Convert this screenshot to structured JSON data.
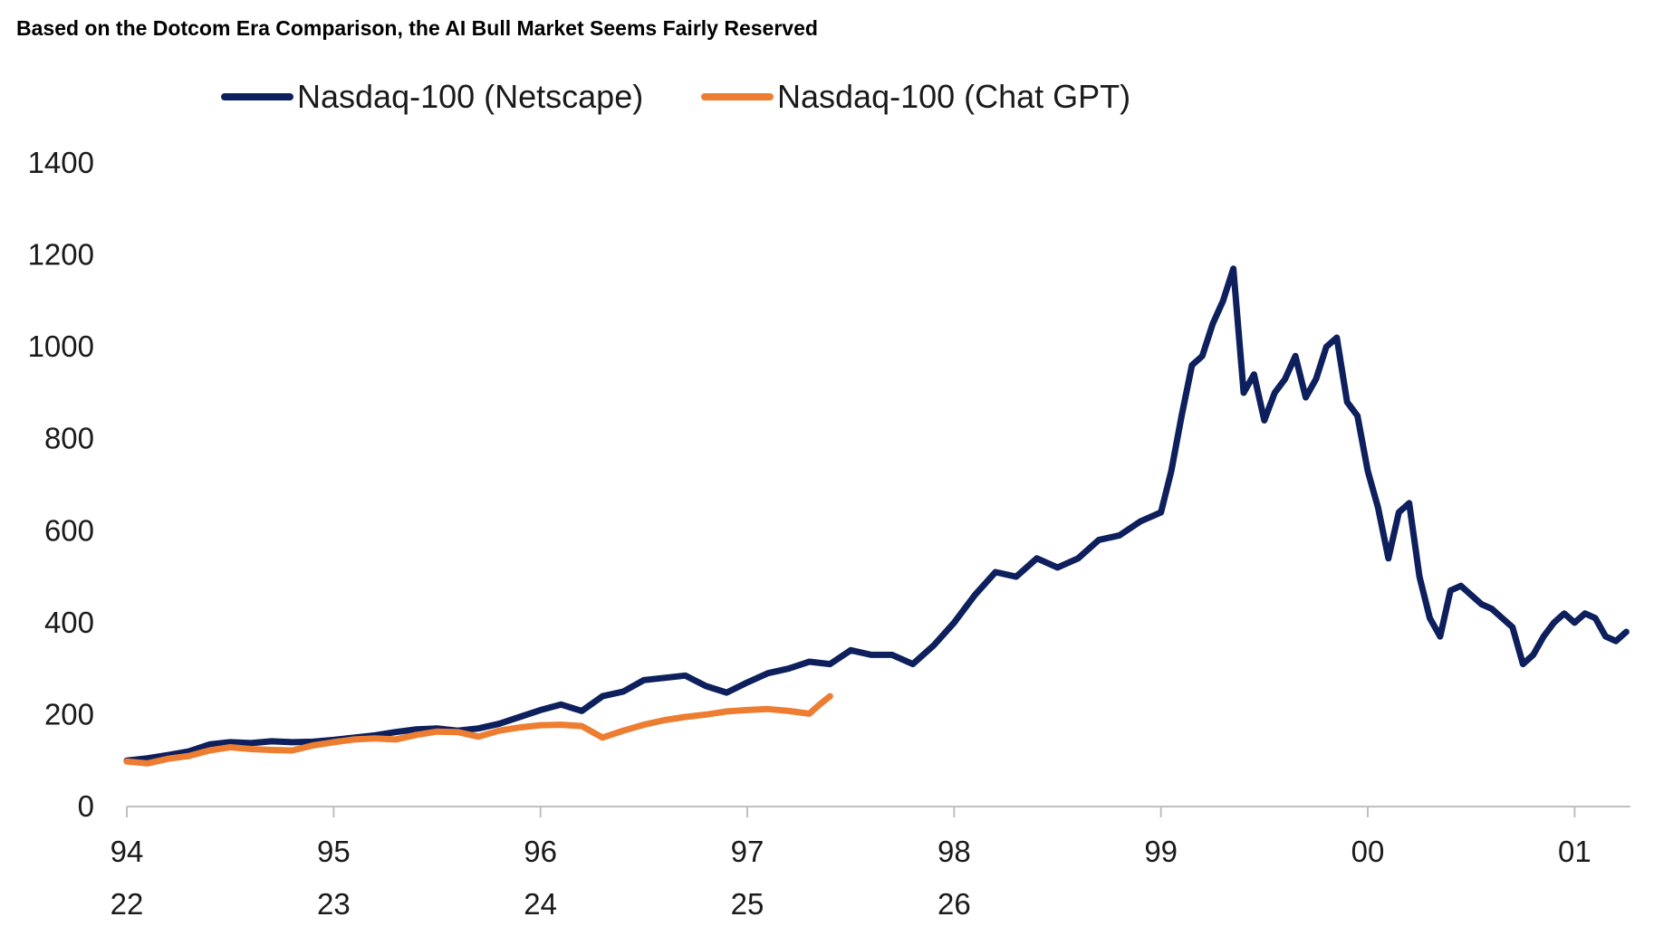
{
  "chart_data": {
    "type": "line",
    "title": "Based on the Dotcom Era Comparison, the AI Bull Market Seems Fairly Reserved",
    "xlabel": "",
    "ylabel": "",
    "ylim": [
      0,
      1400
    ],
    "y_ticks": [
      "0",
      "200",
      "400",
      "600",
      "800",
      "1000",
      "1200",
      "1400"
    ],
    "x_ticks_primary": [
      "94",
      "95",
      "96",
      "97",
      "98",
      "99",
      "00",
      "01"
    ],
    "x_ticks_secondary": [
      "22",
      "23",
      "24",
      "25",
      "26"
    ],
    "x_range": [
      1994.0,
      2001.27
    ],
    "grid": false,
    "legend": "top",
    "series": [
      {
        "name": "Nasdaq-100 (Netscape)",
        "color": "#0d1f5c",
        "x": [
          1994.0,
          1994.1,
          1994.2,
          1994.3,
          1994.4,
          1994.5,
          1994.6,
          1994.7,
          1994.8,
          1994.9,
          1995.0,
          1995.1,
          1995.2,
          1995.3,
          1995.4,
          1995.5,
          1995.6,
          1995.7,
          1995.8,
          1995.9,
          1996.0,
          1996.1,
          1996.2,
          1996.3,
          1996.4,
          1996.5,
          1996.6,
          1996.7,
          1996.8,
          1996.9,
          1997.0,
          1997.1,
          1997.2,
          1997.3,
          1997.4,
          1997.5,
          1997.6,
          1997.7,
          1997.8,
          1997.9,
          1998.0,
          1998.1,
          1998.2,
          1998.3,
          1998.4,
          1998.5,
          1998.6,
          1998.7,
          1998.8,
          1998.9,
          1999.0,
          1999.05,
          1999.1,
          1999.15,
          1999.2,
          1999.25,
          1999.3,
          1999.35,
          1999.4,
          1999.45,
          1999.5,
          1999.55,
          1999.6,
          1999.65,
          1999.7,
          1999.75,
          1999.8,
          1999.85,
          1999.9,
          1999.95,
          2000.0,
          2000.05,
          2000.1,
          2000.15,
          2000.2,
          2000.25,
          2000.3,
          2000.35,
          2000.4,
          2000.45,
          2000.5,
          2000.55,
          2000.6,
          2000.65,
          2000.7,
          2000.75,
          2000.8,
          2000.85,
          2000.9,
          2000.95,
          2001.0,
          2001.05,
          2001.1,
          2001.15,
          2001.2,
          2001.25
        ],
        "values": [
          100,
          105,
          112,
          120,
          135,
          140,
          138,
          142,
          140,
          141,
          145,
          150,
          155,
          162,
          168,
          170,
          165,
          170,
          180,
          195,
          210,
          222,
          208,
          240,
          250,
          275,
          280,
          285,
          262,
          248,
          270,
          290,
          300,
          315,
          310,
          340,
          330,
          330,
          310,
          350,
          400,
          460,
          510,
          500,
          540,
          520,
          540,
          580,
          590,
          620,
          640,
          730,
          850,
          960,
          980,
          1050,
          1100,
          1170,
          900,
          940,
          840,
          900,
          930,
          980,
          890,
          930,
          1000,
          1020,
          880,
          850,
          730,
          650,
          540,
          640,
          660,
          500,
          410,
          370,
          470,
          480,
          460,
          440,
          430,
          410,
          390,
          310,
          330,
          370,
          400,
          420,
          400,
          420,
          410,
          370,
          360,
          380
        ]
      },
      {
        "name": "Nasdaq-100 (Chat GPT)",
        "color": "#ed7d31",
        "x": [
          1994.0,
          1994.1,
          1994.2,
          1994.3,
          1994.4,
          1994.5,
          1994.6,
          1994.7,
          1994.8,
          1994.9,
          1995.0,
          1995.1,
          1995.2,
          1995.3,
          1995.4,
          1995.5,
          1995.6,
          1995.7,
          1995.8,
          1995.9,
          1996.0,
          1996.1,
          1996.2,
          1996.3,
          1996.4,
          1996.5,
          1996.6,
          1996.7,
          1996.8,
          1996.9,
          1997.0,
          1997.1,
          1997.2,
          1997.3,
          1997.35,
          1997.4
        ],
        "values": [
          98,
          94,
          104,
          110,
          122,
          129,
          125,
          123,
          122,
          133,
          140,
          146,
          148,
          146,
          156,
          163,
          162,
          152,
          165,
          172,
          177,
          178,
          175,
          150,
          165,
          178,
          188,
          195,
          200,
          207,
          210,
          212,
          208,
          202,
          222,
          240
        ]
      }
    ]
  }
}
